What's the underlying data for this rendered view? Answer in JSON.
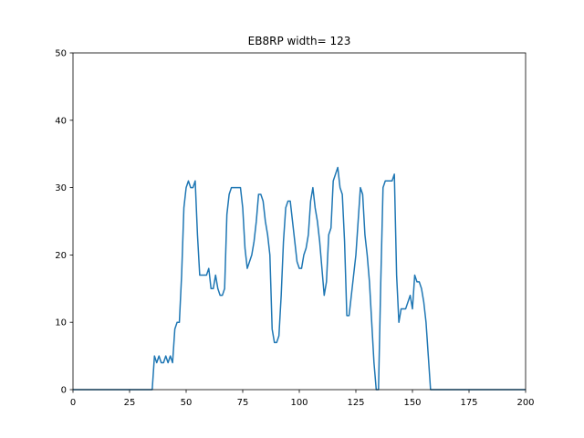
{
  "chart_data": {
    "type": "line",
    "title": "EB8RP width= 123",
    "xlabel": "",
    "ylabel": "",
    "xlim": [
      0,
      200
    ],
    "ylim": [
      0,
      50
    ],
    "xticks": [
      0,
      25,
      50,
      75,
      100,
      125,
      150,
      175,
      200
    ],
    "yticks": [
      0,
      10,
      20,
      30,
      40,
      50
    ],
    "grid": false,
    "color": "#1f77b4",
    "series": [
      {
        "x": [
          0,
          35,
          36,
          37,
          38,
          39,
          40,
          41,
          42,
          43,
          44,
          45,
          46,
          47,
          48,
          49,
          50,
          51,
          52,
          53,
          54,
          55,
          56,
          57,
          58,
          59,
          60,
          61,
          62,
          63,
          64,
          65,
          66,
          67,
          68,
          69,
          70,
          71,
          72,
          73,
          74,
          75,
          76,
          77,
          78,
          79,
          80,
          81,
          82,
          83,
          84,
          85,
          86,
          87,
          88,
          89,
          90,
          91,
          92,
          93,
          94,
          95,
          96,
          97,
          98,
          99,
          100,
          101,
          102,
          103,
          104,
          105,
          106,
          107,
          108,
          109,
          110,
          111,
          112,
          113,
          114,
          115,
          116,
          117,
          118,
          119,
          120,
          121,
          122,
          123,
          124,
          125,
          126,
          127,
          128,
          129,
          130,
          131,
          132,
          133,
          134,
          135,
          136,
          137,
          138,
          139,
          140,
          141,
          142,
          143,
          144,
          145,
          146,
          147,
          148,
          149,
          150,
          151,
          152,
          153,
          154,
          155,
          156,
          157,
          158,
          200
        ],
        "y": [
          0,
          0,
          5,
          4,
          5,
          4,
          4,
          5,
          4,
          5,
          4,
          9,
          10,
          10,
          17,
          27,
          30,
          31,
          30,
          30,
          31,
          23,
          17,
          17,
          17,
          17,
          18,
          15,
          15,
          17,
          15,
          14,
          14,
          15,
          26,
          29,
          30,
          30,
          30,
          30,
          30,
          27,
          21,
          18,
          19,
          20,
          22,
          25,
          29,
          29,
          28,
          25,
          23,
          20,
          9,
          7,
          7,
          8,
          14,
          22,
          27,
          28,
          28,
          25,
          22,
          19,
          18,
          18,
          20,
          21,
          23,
          28,
          30,
          27,
          25,
          22,
          18,
          14,
          16,
          23,
          24,
          31,
          32,
          33,
          30,
          29,
          22,
          11,
          11,
          14,
          17,
          20,
          25,
          30,
          29,
          23,
          20,
          16,
          10,
          4,
          0,
          0,
          16,
          30,
          31,
          31,
          31,
          31,
          32,
          17,
          10,
          12,
          12,
          12,
          13,
          14,
          12,
          17,
          16,
          16,
          15,
          13,
          10,
          5,
          0,
          0
        ]
      }
    ]
  }
}
